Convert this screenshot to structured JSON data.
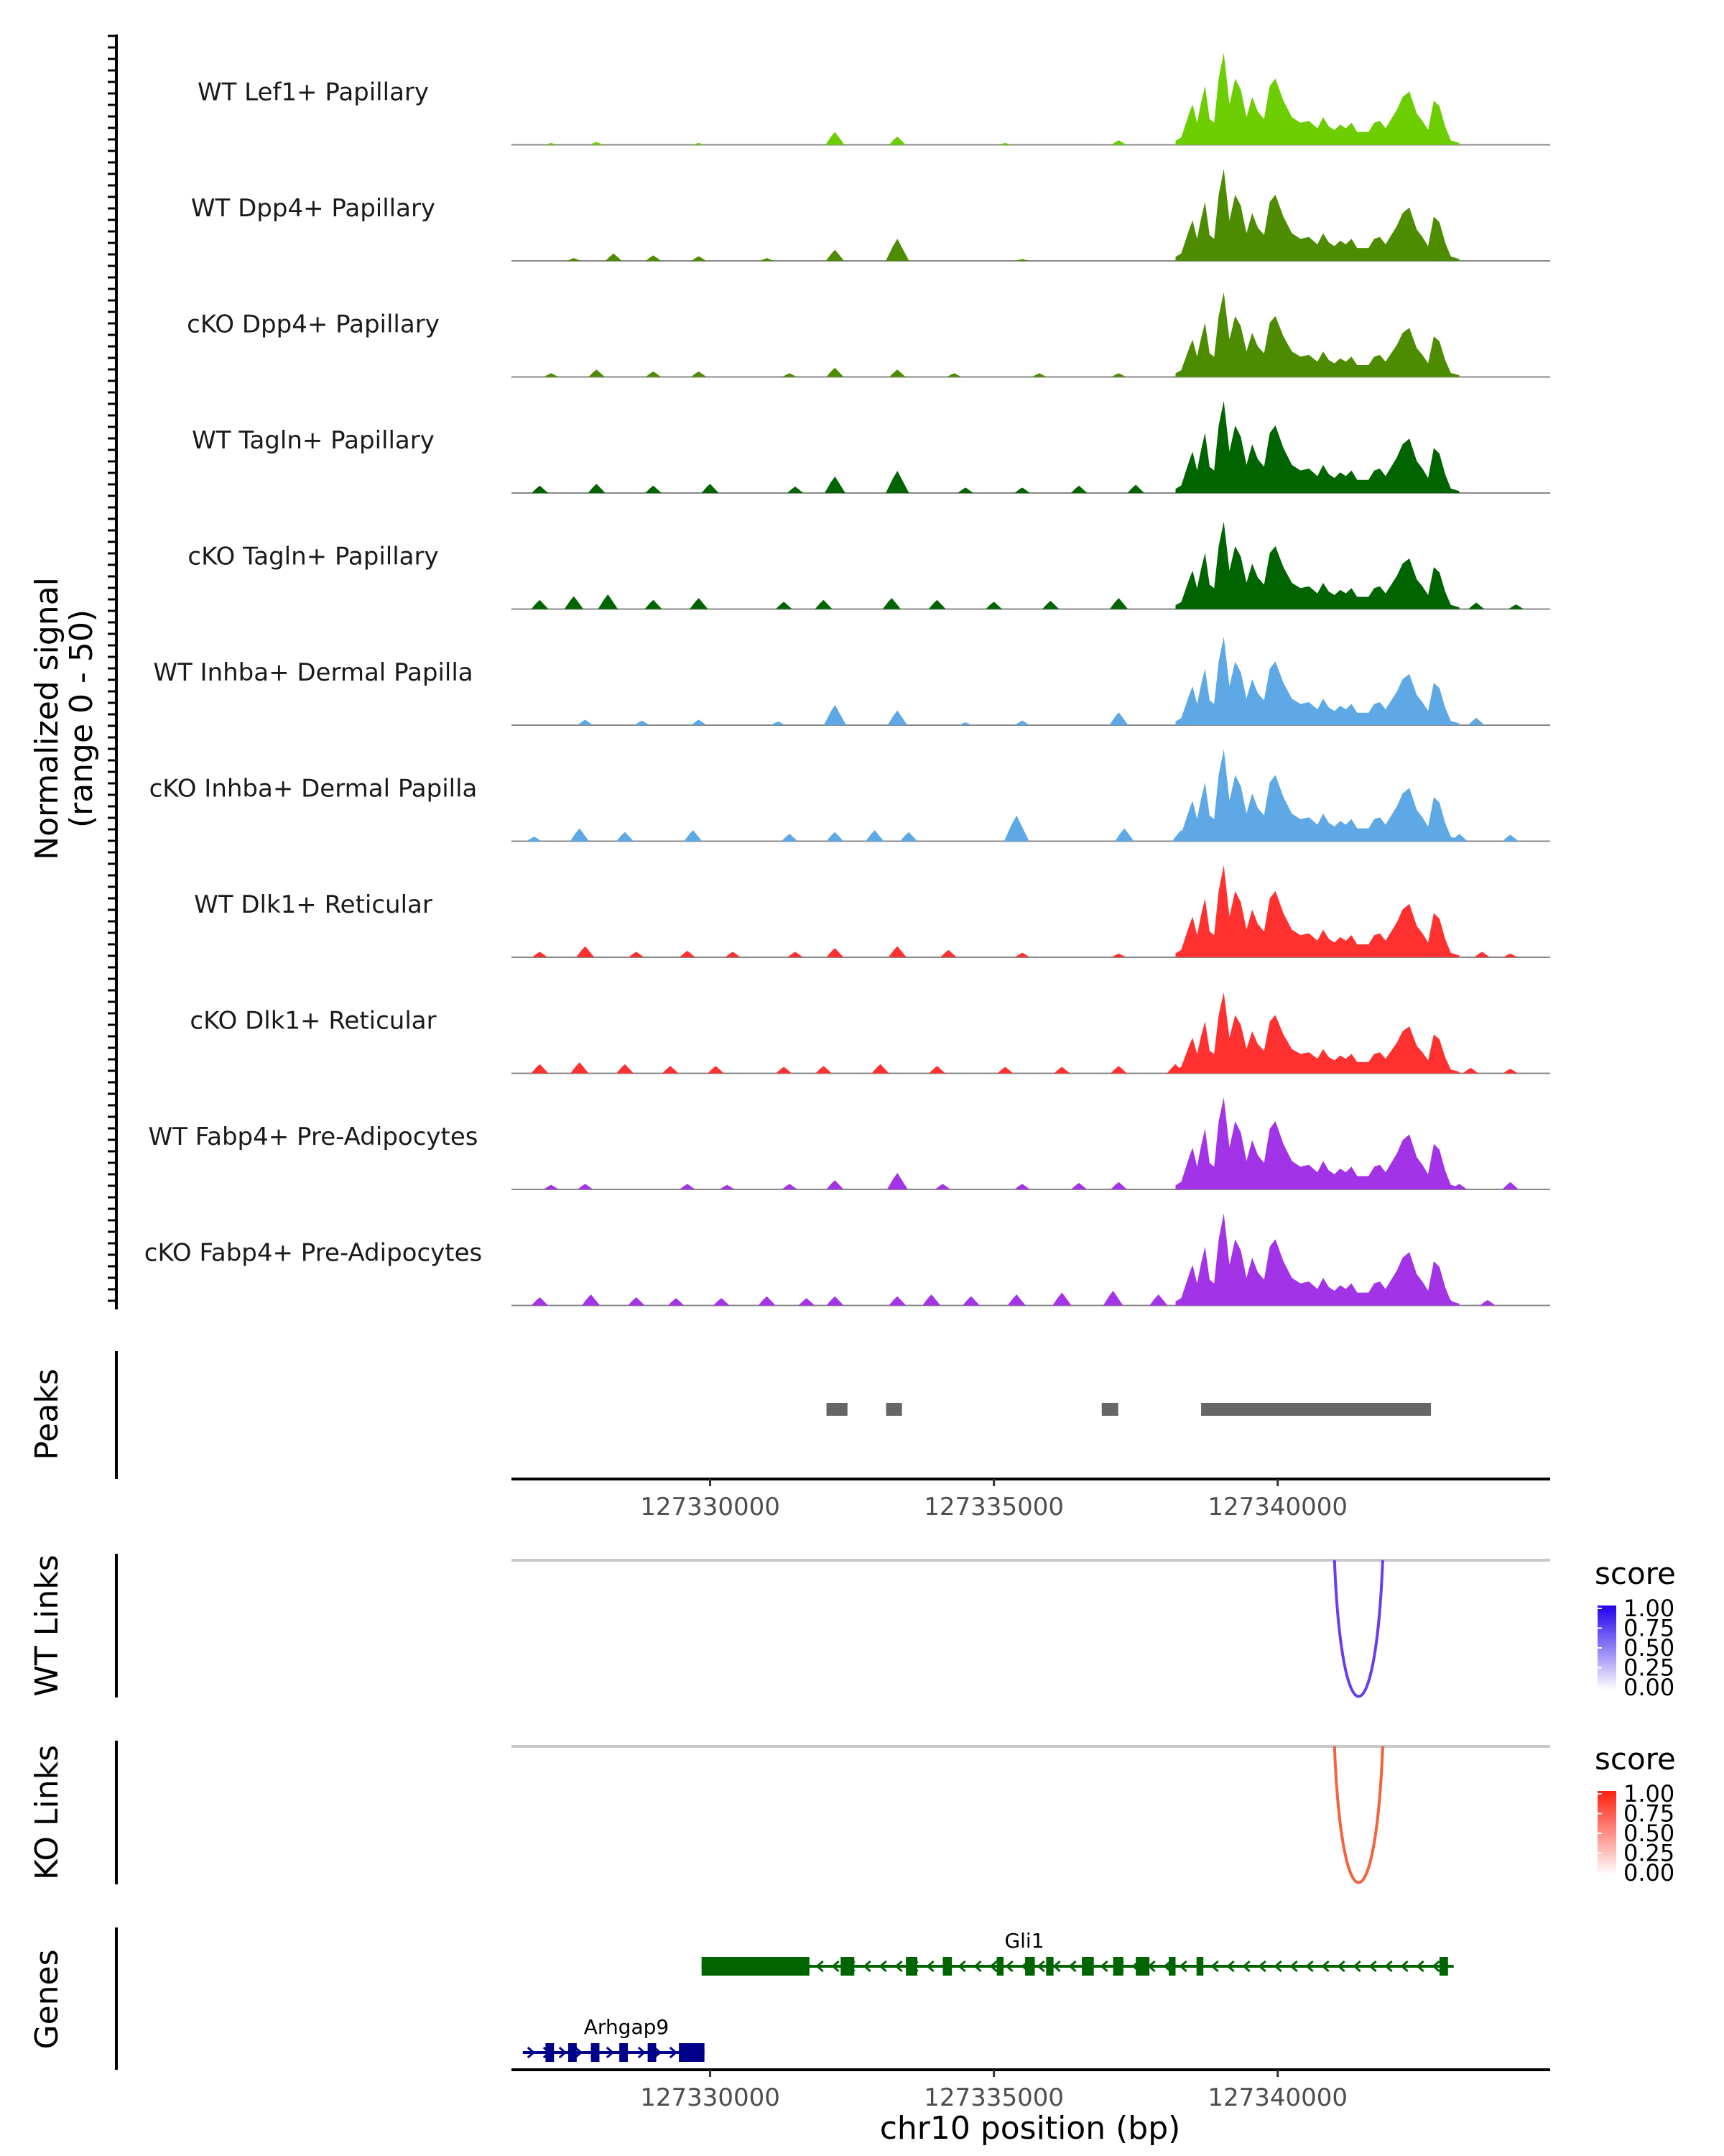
{
  "chart_data": {
    "type": "area",
    "title": "",
    "xlabel": "chr10 position (bp)",
    "ylabel": "Normalized signal",
    "ylabel_range": "(range 0 - 50)",
    "xlim": [
      127326500,
      127344800
    ],
    "ylim": [
      0,
      50
    ],
    "x_ticks": [
      127330000,
      127335000,
      127340000
    ],
    "x_tick_labels": [
      "127330000",
      "127335000",
      "127340000"
    ],
    "coverage_tracks": [
      {
        "label": "WT Lef1+ Papillary",
        "color": "#6ccd00",
        "intensity": 1.0,
        "bg_peaks": [
          [
            127327200,
            1.0
          ],
          [
            127328000,
            1.5
          ],
          [
            127329800,
            1.0
          ],
          [
            127332200,
            7.0
          ],
          [
            127333300,
            4.5
          ],
          [
            127335200,
            1.0
          ],
          [
            127337200,
            2.5
          ]
        ]
      },
      {
        "label": "WT Dpp4+ Papillary",
        "color": "#4d8b00",
        "intensity": 1.0,
        "bg_peaks": [
          [
            127327600,
            1.5
          ],
          [
            127328300,
            4.0
          ],
          [
            127329000,
            3.0
          ],
          [
            127329800,
            2.5
          ],
          [
            127331000,
            1.5
          ],
          [
            127332200,
            6.0
          ],
          [
            127333300,
            12.0
          ],
          [
            127335500,
            1.0
          ]
        ]
      },
      {
        "label": "cKO Dpp4+ Papillary",
        "color": "#4d8b00",
        "intensity": 0.92,
        "bg_peaks": [
          [
            127327200,
            2.0
          ],
          [
            127328000,
            4.0
          ],
          [
            127329000,
            3.0
          ],
          [
            127329800,
            3.0
          ],
          [
            127331400,
            2.0
          ],
          [
            127332200,
            5.0
          ],
          [
            127333300,
            4.0
          ],
          [
            127334300,
            2.0
          ],
          [
            127335800,
            2.0
          ],
          [
            127337200,
            2.0
          ]
        ]
      },
      {
        "label": "WT Tagln+ Papillary",
        "color": "#006400",
        "intensity": 1.02,
        "bg_peaks": [
          [
            127327000,
            4.0
          ],
          [
            127328000,
            5.0
          ],
          [
            127329000,
            4.0
          ],
          [
            127330000,
            5.0
          ],
          [
            127331500,
            3.5
          ],
          [
            127332200,
            9.0
          ],
          [
            127333300,
            12.0
          ],
          [
            127334500,
            3.0
          ],
          [
            127335500,
            3.0
          ],
          [
            127336500,
            4.0
          ],
          [
            127337500,
            4.5
          ],
          [
            127338500,
            5.0
          ]
        ]
      },
      {
        "label": "cKO Tagln+ Papillary",
        "color": "#006400",
        "intensity": 0.95,
        "bg_peaks": [
          [
            127327000,
            5.0
          ],
          [
            127327600,
            7.0
          ],
          [
            127328200,
            8.0
          ],
          [
            127329000,
            5.0
          ],
          [
            127329800,
            6.0
          ],
          [
            127331300,
            4.0
          ],
          [
            127332000,
            5.0
          ],
          [
            127333200,
            6.0
          ],
          [
            127334000,
            5.0
          ],
          [
            127335000,
            4.0
          ],
          [
            127336000,
            4.5
          ],
          [
            127337200,
            6.0
          ],
          [
            127338500,
            6.0
          ],
          [
            127343500,
            3.5
          ],
          [
            127344200,
            2.5
          ]
        ]
      },
      {
        "label": "WT Inhba+ Dermal Papilla",
        "color": "#5ea9e5",
        "intensity": 0.96,
        "bg_peaks": [
          [
            127327800,
            3.0
          ],
          [
            127328800,
            2.5
          ],
          [
            127329800,
            3.0
          ],
          [
            127331200,
            2.0
          ],
          [
            127332200,
            11.0
          ],
          [
            127333300,
            8.0
          ],
          [
            127334500,
            1.5
          ],
          [
            127335500,
            2.5
          ],
          [
            127337200,
            7.0
          ],
          [
            127343500,
            4.0
          ]
        ]
      },
      {
        "label": "cKO Inhba+ Dermal Papilla",
        "color": "#5ea9e5",
        "intensity": 1.0,
        "bg_peaks": [
          [
            127326900,
            2.5
          ],
          [
            127327700,
            7.0
          ],
          [
            127328500,
            5.0
          ],
          [
            127329700,
            6.0
          ],
          [
            127331400,
            4.0
          ],
          [
            127332200,
            5.0
          ],
          [
            127332900,
            6.0
          ],
          [
            127333500,
            5.0
          ],
          [
            127335400,
            14.0
          ],
          [
            127337300,
            7.0
          ],
          [
            127338300,
            6.0
          ],
          [
            127343200,
            4.0
          ],
          [
            127344100,
            3.5
          ]
        ]
      },
      {
        "label": "WT Dlk1+ Reticular",
        "color": "#ff3030",
        "intensity": 1.0,
        "bg_peaks": [
          [
            127327000,
            3.0
          ],
          [
            127327800,
            6.0
          ],
          [
            127328700,
            3.0
          ],
          [
            127329600,
            3.5
          ],
          [
            127330400,
            3.0
          ],
          [
            127331500,
            3.0
          ],
          [
            127332200,
            5.0
          ],
          [
            127333300,
            6.0
          ],
          [
            127334200,
            4.0
          ],
          [
            127335500,
            2.5
          ],
          [
            127337200,
            2.0
          ],
          [
            127338400,
            5.0
          ],
          [
            127343600,
            3.0
          ],
          [
            127344100,
            2.0
          ]
        ]
      },
      {
        "label": "cKO Dlk1+ Reticular",
        "color": "#ff3030",
        "intensity": 0.88,
        "bg_peaks": [
          [
            127327000,
            5.0
          ],
          [
            127327700,
            6.0
          ],
          [
            127328500,
            5.0
          ],
          [
            127329300,
            4.0
          ],
          [
            127330100,
            4.0
          ],
          [
            127331300,
            3.5
          ],
          [
            127332000,
            4.0
          ],
          [
            127333000,
            5.0
          ],
          [
            127334000,
            4.0
          ],
          [
            127335200,
            3.5
          ],
          [
            127336200,
            3.5
          ],
          [
            127337200,
            4.0
          ],
          [
            127338200,
            5.0
          ],
          [
            127343400,
            3.0
          ],
          [
            127344100,
            2.5
          ]
        ]
      },
      {
        "label": "WT Fabp4+ Pre-Adipocytes",
        "color": "#a333e6",
        "intensity": 1.03,
        "bg_peaks": [
          [
            127327200,
            2.5
          ],
          [
            127327800,
            3.0
          ],
          [
            127329600,
            3.0
          ],
          [
            127330300,
            2.5
          ],
          [
            127331400,
            3.0
          ],
          [
            127332200,
            5.0
          ],
          [
            127333300,
            9.0
          ],
          [
            127334100,
            3.0
          ],
          [
            127335500,
            3.0
          ],
          [
            127336500,
            3.5
          ],
          [
            127337200,
            4.0
          ],
          [
            127338400,
            4.0
          ],
          [
            127343200,
            3.0
          ],
          [
            127344100,
            4.0
          ]
        ]
      },
      {
        "label": "cKO Fabp4+ Pre-Adipocytes",
        "color": "#a333e6",
        "intensity": 1.0,
        "bg_peaks": [
          [
            127327000,
            4.5
          ],
          [
            127327900,
            6.0
          ],
          [
            127328700,
            4.5
          ],
          [
            127329400,
            4.0
          ],
          [
            127330200,
            4.0
          ],
          [
            127331000,
            5.0
          ],
          [
            127331700,
            4.0
          ],
          [
            127332200,
            5.0
          ],
          [
            127333300,
            5.0
          ],
          [
            127333900,
            6.0
          ],
          [
            127334600,
            5.0
          ],
          [
            127335400,
            6.0
          ],
          [
            127336200,
            7.0
          ],
          [
            127337100,
            8.0
          ],
          [
            127337900,
            6.0
          ],
          [
            127338600,
            5.0
          ],
          [
            127343000,
            4.5
          ],
          [
            127343700,
            3.0
          ]
        ]
      }
    ],
    "main_peak_shape": [
      [
        127338200,
        2.2
      ],
      [
        127338300,
        4.0
      ],
      [
        127338450,
        18.0
      ],
      [
        127338500,
        22.0
      ],
      [
        127338580,
        12.0
      ],
      [
        127338650,
        23.0
      ],
      [
        127338720,
        32.0
      ],
      [
        127338800,
        14.0
      ],
      [
        127338880,
        12.0
      ],
      [
        127338960,
        36.0
      ],
      [
        127339050,
        50.0
      ],
      [
        127339150,
        22.0
      ],
      [
        127339250,
        36.0
      ],
      [
        127339350,
        30.0
      ],
      [
        127339450,
        15.0
      ],
      [
        127339550,
        26.0
      ],
      [
        127339650,
        18.0
      ],
      [
        127339760,
        14.0
      ],
      [
        127339860,
        32.0
      ],
      [
        127339960,
        36.0
      ],
      [
        127340100,
        24.0
      ],
      [
        127340250,
        15.0
      ],
      [
        127340400,
        12.0
      ],
      [
        127340550,
        13.0
      ],
      [
        127340700,
        9.0
      ],
      [
        127340800,
        15.0
      ],
      [
        127340900,
        10.0
      ],
      [
        127341000,
        8.0
      ],
      [
        127341100,
        11.0
      ],
      [
        127341200,
        9.0
      ],
      [
        127341300,
        12.0
      ],
      [
        127341400,
        7.0
      ],
      [
        127341600,
        7.0
      ],
      [
        127341700,
        12.0
      ],
      [
        127341800,
        13.0
      ],
      [
        127341900,
        9.0
      ],
      [
        127342000,
        14.0
      ],
      [
        127342100,
        19.0
      ],
      [
        127342200,
        26.0
      ],
      [
        127342320,
        29.0
      ],
      [
        127342450,
        17.0
      ],
      [
        127342550,
        13.0
      ],
      [
        127342650,
        8.0
      ],
      [
        127342750,
        24.0
      ],
      [
        127342850,
        21.0
      ],
      [
        127342950,
        10.0
      ],
      [
        127343050,
        2.4
      ],
      [
        127343200,
        1.0
      ]
    ],
    "peaks": {
      "label": "Peaks",
      "regions": [
        [
          127332050,
          127332420
        ],
        [
          127333100,
          127333380
        ],
        [
          127336900,
          127337190
        ],
        [
          127338650,
          127342700
        ]
      ]
    },
    "wt_links": {
      "label": "WT Links",
      "legend_title": "score",
      "legend_ticks": [
        "1.00",
        "0.75",
        "0.50",
        "0.25",
        "0.00"
      ],
      "color_high": "#2200ee",
      "links": [
        {
          "start": 127341000,
          "end": 127341850,
          "score": 0.6,
          "color": "#6a3cf0"
        }
      ]
    },
    "ko_links": {
      "label": "KO Links",
      "legend_title": "score",
      "legend_ticks": [
        "1.00",
        "0.75",
        "0.50",
        "0.25",
        "0.00"
      ],
      "color_high": "#ff2010",
      "links": [
        {
          "start": 127341000,
          "end": 127341850,
          "score": 0.6,
          "color": "#f5623c"
        }
      ]
    },
    "genes": {
      "label": "Genes",
      "items": [
        {
          "name": "Gli1",
          "strand": "-",
          "color": "#006400",
          "start": 127329850,
          "end": 127343100,
          "exons": [
            [
              127329850,
              127331750
            ],
            [
              127332300,
              127332540
            ],
            [
              127333450,
              127333650
            ],
            [
              127334100,
              127334260
            ],
            [
              127335050,
              127335170
            ],
            [
              127335550,
              127335720
            ],
            [
              127335920,
              127336050
            ],
            [
              127336550,
              127336760
            ],
            [
              127337100,
              127337280
            ],
            [
              127337500,
              127337740
            ],
            [
              127338080,
              127338200
            ],
            [
              127338570,
              127338690
            ],
            [
              127342850,
              127343000
            ]
          ]
        },
        {
          "name": "Arhgap9",
          "strand": "+",
          "color": "#00008b",
          "start": 127326700,
          "end": 127329900,
          "exons": [
            [
              127327100,
              127327250
            ],
            [
              127327500,
              127327650
            ],
            [
              127327900,
              127328050
            ],
            [
              127328400,
              127328550
            ],
            [
              127328900,
              127329050
            ],
            [
              127329450,
              127329900
            ]
          ]
        }
      ]
    }
  }
}
